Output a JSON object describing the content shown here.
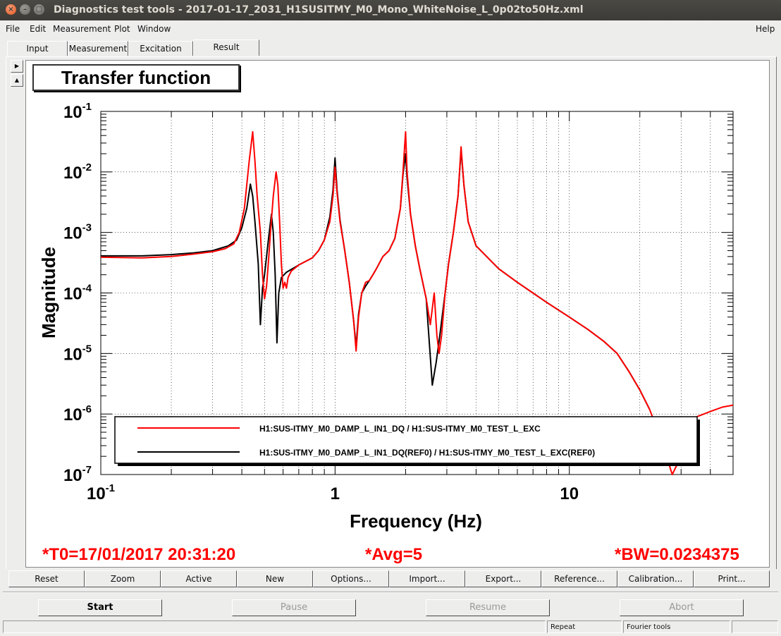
{
  "window": {
    "title": "Diagnostics test tools - 2017-01-17_2031_H1SUSITMY_M0_Mono_WhiteNoise_L_0p02to50Hz.xml"
  },
  "menu": {
    "file": "File",
    "edit": "Edit",
    "measurement": "Measurement",
    "plot": "Plot",
    "window": "Window",
    "help": "Help"
  },
  "tabs": {
    "input": "Input",
    "measurement": "Measurement",
    "excitation": "Excitation",
    "result": "Result"
  },
  "scroll_icons": {
    "up": "triangle-right-icon",
    "down": "triangle-up-icon"
  },
  "plot": {
    "title": "Transfer function",
    "t0": "*T0=17/01/2017 20:31:20",
    "avg": "*Avg=5",
    "bw": "*BW=0.0234375"
  },
  "chart_data": {
    "type": "line",
    "xlabel": "Frequency (Hz)",
    "ylabel": "Magnitude",
    "xscale": "log",
    "yscale": "log",
    "xlim": [
      0.1,
      50
    ],
    "ylim": [
      1e-07,
      0.1
    ],
    "grid": true,
    "x_ticks": [
      {
        "value": 0.1,
        "base": "10",
        "exp": "-1"
      },
      {
        "value": 1,
        "base": "1",
        "exp": ""
      },
      {
        "value": 10,
        "base": "10",
        "exp": ""
      }
    ],
    "y_ticks": [
      {
        "value": 0.1,
        "base": "10",
        "exp": "-1"
      },
      {
        "value": 0.01,
        "base": "10",
        "exp": "-2"
      },
      {
        "value": 0.001,
        "base": "10",
        "exp": "-3"
      },
      {
        "value": 0.0001,
        "base": "10",
        "exp": "-4"
      },
      {
        "value": 1e-05,
        "base": "10",
        "exp": "-5"
      },
      {
        "value": 1e-06,
        "base": "10",
        "exp": "-6"
      },
      {
        "value": 1e-07,
        "base": "10",
        "exp": "-7"
      }
    ],
    "legend_position": "bottom",
    "series": [
      {
        "name": "H1:SUS-ITMY_M0_DAMP_L_IN1_DQ / H1:SUS-ITMY_M0_TEST_L_EXC",
        "color": "#ff0000",
        "points": [
          [
            0.1,
            0.00039
          ],
          [
            0.15,
            0.00038
          ],
          [
            0.2,
            0.0004
          ],
          [
            0.25,
            0.00044
          ],
          [
            0.3,
            0.00048
          ],
          [
            0.34,
            0.00054
          ],
          [
            0.37,
            0.00065
          ],
          [
            0.39,
            0.001
          ],
          [
            0.41,
            0.0025
          ],
          [
            0.43,
            0.015
          ],
          [
            0.445,
            0.046
          ],
          [
            0.455,
            0.015
          ],
          [
            0.465,
            0.004
          ],
          [
            0.48,
            0.001
          ],
          [
            0.49,
            0.0002
          ],
          [
            0.5,
            8e-05
          ],
          [
            0.51,
            0.00013
          ],
          [
            0.52,
            0.00035
          ],
          [
            0.53,
            0.001
          ],
          [
            0.545,
            0.004
          ],
          [
            0.56,
            0.01
          ],
          [
            0.57,
            0.006
          ],
          [
            0.58,
            0.0015
          ],
          [
            0.59,
            0.0003
          ],
          [
            0.6,
            0.00012
          ],
          [
            0.61,
            0.00015
          ],
          [
            0.62,
            0.00012
          ],
          [
            0.63,
            0.00018
          ],
          [
            0.65,
            0.00023
          ],
          [
            0.7,
            0.00029
          ],
          [
            0.8,
            0.00038
          ],
          [
            0.85,
            0.0005
          ],
          [
            0.9,
            0.00075
          ],
          [
            0.95,
            0.0015
          ],
          [
            0.98,
            0.004
          ],
          [
            1.0,
            0.012
          ],
          [
            1.02,
            0.0045
          ],
          [
            1.05,
            0.0015
          ],
          [
            1.1,
            0.0005
          ],
          [
            1.15,
            0.00015
          ],
          [
            1.2,
            3.5e-05
          ],
          [
            1.23,
            1.1e-05
          ],
          [
            1.26,
            4e-05
          ],
          [
            1.3,
            0.0001
          ],
          [
            1.35,
            0.00015
          ],
          [
            1.4,
            0.00016
          ],
          [
            1.45,
            0.0002
          ],
          [
            1.5,
            0.00025
          ],
          [
            1.6,
            0.0004
          ],
          [
            1.7,
            0.0005
          ],
          [
            1.8,
            0.0008
          ],
          [
            1.9,
            0.0025
          ],
          [
            1.95,
            0.01
          ],
          [
            2.0,
            0.046
          ],
          [
            2.03,
            0.01
          ],
          [
            2.1,
            0.002
          ],
          [
            2.2,
            0.0006
          ],
          [
            2.3,
            0.00025
          ],
          [
            2.45,
            8e-05
          ],
          [
            2.55,
            3e-05
          ],
          [
            2.65,
            0.0001
          ],
          [
            2.72,
            2e-05
          ],
          [
            2.78,
            1e-05
          ],
          [
            2.85,
            2e-05
          ],
          [
            2.95,
            0.0001
          ],
          [
            3.05,
            0.0003
          ],
          [
            3.2,
            0.001
          ],
          [
            3.35,
            0.004
          ],
          [
            3.45,
            0.026
          ],
          [
            3.55,
            0.006
          ],
          [
            3.7,
            0.0015
          ],
          [
            4.0,
            0.0006
          ],
          [
            5.0,
            0.00025
          ],
          [
            6.0,
            0.00015
          ],
          [
            8.0,
            7e-05
          ],
          [
            10.0,
            4e-05
          ],
          [
            12.0,
            2.5e-05
          ],
          [
            14.0,
            1.6e-05
          ],
          [
            16.0,
            1e-05
          ],
          [
            18.0,
            5e-06
          ],
          [
            20.0,
            2.5e-06
          ],
          [
            22.0,
            1.2e-06
          ],
          [
            24.0,
            5e-07
          ],
          [
            26.0,
            2e-07
          ],
          [
            27.5,
            1e-07
          ],
          [
            30.0,
            2e-07
          ],
          [
            32.0,
            5e-07
          ],
          [
            35.0,
            9e-07
          ],
          [
            40.0,
            1.1e-06
          ],
          [
            45.0,
            1.3e-06
          ],
          [
            50.0,
            1.4e-06
          ]
        ]
      },
      {
        "name": "H1:SUS-ITMY_M0_DAMP_L_IN1_DQ(REF0) / H1:SUS-ITMY_M0_TEST_L_EXC(REF0)",
        "color": "#000000",
        "points": [
          [
            0.1,
            0.00041
          ],
          [
            0.15,
            0.00041
          ],
          [
            0.2,
            0.00043
          ],
          [
            0.25,
            0.00046
          ],
          [
            0.3,
            0.0005
          ],
          [
            0.35,
            0.0006
          ],
          [
            0.38,
            0.00075
          ],
          [
            0.4,
            0.0012
          ],
          [
            0.42,
            0.0025
          ],
          [
            0.435,
            0.0063
          ],
          [
            0.445,
            0.004
          ],
          [
            0.455,
            0.0015
          ],
          [
            0.47,
            0.0003
          ],
          [
            0.48,
            3e-05
          ],
          [
            0.49,
            0.00012
          ],
          [
            0.5,
            0.0002
          ],
          [
            0.52,
            0.0008
          ],
          [
            0.535,
            0.002
          ],
          [
            0.545,
            0.001
          ],
          [
            0.555,
            0.0002
          ],
          [
            0.565,
            1.5e-05
          ],
          [
            0.575,
            0.0001
          ],
          [
            0.59,
            0.00018
          ],
          [
            0.62,
            0.00022
          ],
          [
            0.7,
            0.00029
          ],
          [
            0.8,
            0.00038
          ],
          [
            0.85,
            0.0005
          ],
          [
            0.9,
            0.00075
          ],
          [
            0.95,
            0.0018
          ],
          [
            0.98,
            0.005
          ],
          [
            1.0,
            0.017
          ],
          [
            1.02,
            0.005
          ],
          [
            1.05,
            0.0016
          ],
          [
            1.1,
            0.0005
          ],
          [
            1.15,
            0.00015
          ],
          [
            1.2,
            3.5e-05
          ],
          [
            1.23,
            1.3e-05
          ],
          [
            1.26,
            4.5e-05
          ],
          [
            1.3,
            0.0001
          ],
          [
            1.35,
            0.00013
          ],
          [
            1.4,
            0.00016
          ],
          [
            1.45,
            0.0002
          ],
          [
            1.5,
            0.00025
          ],
          [
            1.6,
            0.0004
          ],
          [
            1.7,
            0.0005
          ],
          [
            1.8,
            0.0008
          ],
          [
            1.9,
            0.0025
          ],
          [
            1.95,
            0.009
          ],
          [
            2.0,
            0.02
          ],
          [
            2.03,
            0.008
          ],
          [
            2.1,
            0.002
          ],
          [
            2.2,
            0.0006
          ],
          [
            2.3,
            0.00025
          ],
          [
            2.45,
            8e-05
          ],
          [
            2.6,
            3e-06
          ],
          [
            2.7,
            7e-06
          ],
          [
            2.8,
            2e-05
          ],
          [
            2.95,
            0.0001
          ],
          [
            3.05,
            0.0003
          ],
          [
            3.2,
            0.001
          ],
          [
            3.35,
            0.004
          ],
          [
            3.45,
            0.023
          ],
          [
            3.55,
            0.006
          ],
          [
            3.7,
            0.0015
          ],
          [
            4.0,
            0.0006
          ],
          [
            5.0,
            0.00025
          ],
          [
            6.0,
            0.00015
          ],
          [
            8.0,
            7e-05
          ],
          [
            10.0,
            4e-05
          ],
          [
            12.0,
            2.5e-05
          ],
          [
            14.0,
            1.6e-05
          ],
          [
            16.0,
            1e-05
          ],
          [
            18.0,
            5e-06
          ],
          [
            20.0,
            2.5e-06
          ],
          [
            22.0,
            1.2e-06
          ]
        ]
      }
    ]
  },
  "toolbar": {
    "reset": "Reset",
    "zoom": "Zoom",
    "active": "Active",
    "new": "New",
    "options": "Options...",
    "import": "Import...",
    "export": "Export...",
    "reference": "Reference...",
    "calibration": "Calibration...",
    "print": "Print..."
  },
  "controls": {
    "start": "Start",
    "pause": "Pause",
    "resume": "Resume",
    "abort": "Abort"
  },
  "statusbar": {
    "repeat": "Repeat",
    "fourier": "Fourier tools"
  }
}
